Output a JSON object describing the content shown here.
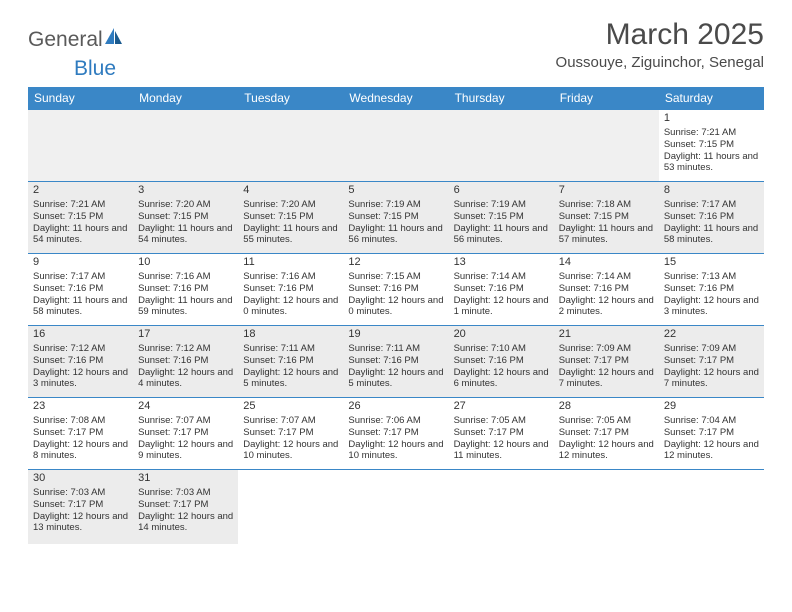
{
  "logo": {
    "text1": "General",
    "text2": "Blue"
  },
  "header": {
    "month_title": "March 2025",
    "location": "Oussouye, Ziguinchor, Senegal"
  },
  "colors": {
    "header_bg": "#3a87c7",
    "header_fg": "#ffffff",
    "shaded_bg": "#ececec",
    "border": "#3a87c7"
  },
  "day_names": [
    "Sunday",
    "Monday",
    "Tuesday",
    "Wednesday",
    "Thursday",
    "Friday",
    "Saturday"
  ],
  "weeks": [
    [
      null,
      null,
      null,
      null,
      null,
      null,
      {
        "d": "1",
        "sr": "7:21 AM",
        "ss": "7:15 PM",
        "dl": "11 hours and 53 minutes."
      }
    ],
    [
      {
        "d": "2",
        "sr": "7:21 AM",
        "ss": "7:15 PM",
        "dl": "11 hours and 54 minutes.",
        "sh": true
      },
      {
        "d": "3",
        "sr": "7:20 AM",
        "ss": "7:15 PM",
        "dl": "11 hours and 54 minutes.",
        "sh": true
      },
      {
        "d": "4",
        "sr": "7:20 AM",
        "ss": "7:15 PM",
        "dl": "11 hours and 55 minutes.",
        "sh": true
      },
      {
        "d": "5",
        "sr": "7:19 AM",
        "ss": "7:15 PM",
        "dl": "11 hours and 56 minutes.",
        "sh": true
      },
      {
        "d": "6",
        "sr": "7:19 AM",
        "ss": "7:15 PM",
        "dl": "11 hours and 56 minutes.",
        "sh": true
      },
      {
        "d": "7",
        "sr": "7:18 AM",
        "ss": "7:15 PM",
        "dl": "11 hours and 57 minutes.",
        "sh": true
      },
      {
        "d": "8",
        "sr": "7:17 AM",
        "ss": "7:16 PM",
        "dl": "11 hours and 58 minutes.",
        "sh": true
      }
    ],
    [
      {
        "d": "9",
        "sr": "7:17 AM",
        "ss": "7:16 PM",
        "dl": "11 hours and 58 minutes."
      },
      {
        "d": "10",
        "sr": "7:16 AM",
        "ss": "7:16 PM",
        "dl": "11 hours and 59 minutes."
      },
      {
        "d": "11",
        "sr": "7:16 AM",
        "ss": "7:16 PM",
        "dl": "12 hours and 0 minutes."
      },
      {
        "d": "12",
        "sr": "7:15 AM",
        "ss": "7:16 PM",
        "dl": "12 hours and 0 minutes."
      },
      {
        "d": "13",
        "sr": "7:14 AM",
        "ss": "7:16 PM",
        "dl": "12 hours and 1 minute."
      },
      {
        "d": "14",
        "sr": "7:14 AM",
        "ss": "7:16 PM",
        "dl": "12 hours and 2 minutes."
      },
      {
        "d": "15",
        "sr": "7:13 AM",
        "ss": "7:16 PM",
        "dl": "12 hours and 3 minutes."
      }
    ],
    [
      {
        "d": "16",
        "sr": "7:12 AM",
        "ss": "7:16 PM",
        "dl": "12 hours and 3 minutes.",
        "sh": true
      },
      {
        "d": "17",
        "sr": "7:12 AM",
        "ss": "7:16 PM",
        "dl": "12 hours and 4 minutes.",
        "sh": true
      },
      {
        "d": "18",
        "sr": "7:11 AM",
        "ss": "7:16 PM",
        "dl": "12 hours and 5 minutes.",
        "sh": true
      },
      {
        "d": "19",
        "sr": "7:11 AM",
        "ss": "7:16 PM",
        "dl": "12 hours and 5 minutes.",
        "sh": true
      },
      {
        "d": "20",
        "sr": "7:10 AM",
        "ss": "7:16 PM",
        "dl": "12 hours and 6 minutes.",
        "sh": true
      },
      {
        "d": "21",
        "sr": "7:09 AM",
        "ss": "7:17 PM",
        "dl": "12 hours and 7 minutes.",
        "sh": true
      },
      {
        "d": "22",
        "sr": "7:09 AM",
        "ss": "7:17 PM",
        "dl": "12 hours and 7 minutes.",
        "sh": true
      }
    ],
    [
      {
        "d": "23",
        "sr": "7:08 AM",
        "ss": "7:17 PM",
        "dl": "12 hours and 8 minutes."
      },
      {
        "d": "24",
        "sr": "7:07 AM",
        "ss": "7:17 PM",
        "dl": "12 hours and 9 minutes."
      },
      {
        "d": "25",
        "sr": "7:07 AM",
        "ss": "7:17 PM",
        "dl": "12 hours and 10 minutes."
      },
      {
        "d": "26",
        "sr": "7:06 AM",
        "ss": "7:17 PM",
        "dl": "12 hours and 10 minutes."
      },
      {
        "d": "27",
        "sr": "7:05 AM",
        "ss": "7:17 PM",
        "dl": "12 hours and 11 minutes."
      },
      {
        "d": "28",
        "sr": "7:05 AM",
        "ss": "7:17 PM",
        "dl": "12 hours and 12 minutes."
      },
      {
        "d": "29",
        "sr": "7:04 AM",
        "ss": "7:17 PM",
        "dl": "12 hours and 12 minutes."
      }
    ],
    [
      {
        "d": "30",
        "sr": "7:03 AM",
        "ss": "7:17 PM",
        "dl": "12 hours and 13 minutes.",
        "sh": true
      },
      {
        "d": "31",
        "sr": "7:03 AM",
        "ss": "7:17 PM",
        "dl": "12 hours and 14 minutes.",
        "sh": true
      },
      null,
      null,
      null,
      null,
      null
    ]
  ],
  "labels": {
    "sunrise": "Sunrise:",
    "sunset": "Sunset:",
    "daylight": "Daylight:"
  }
}
